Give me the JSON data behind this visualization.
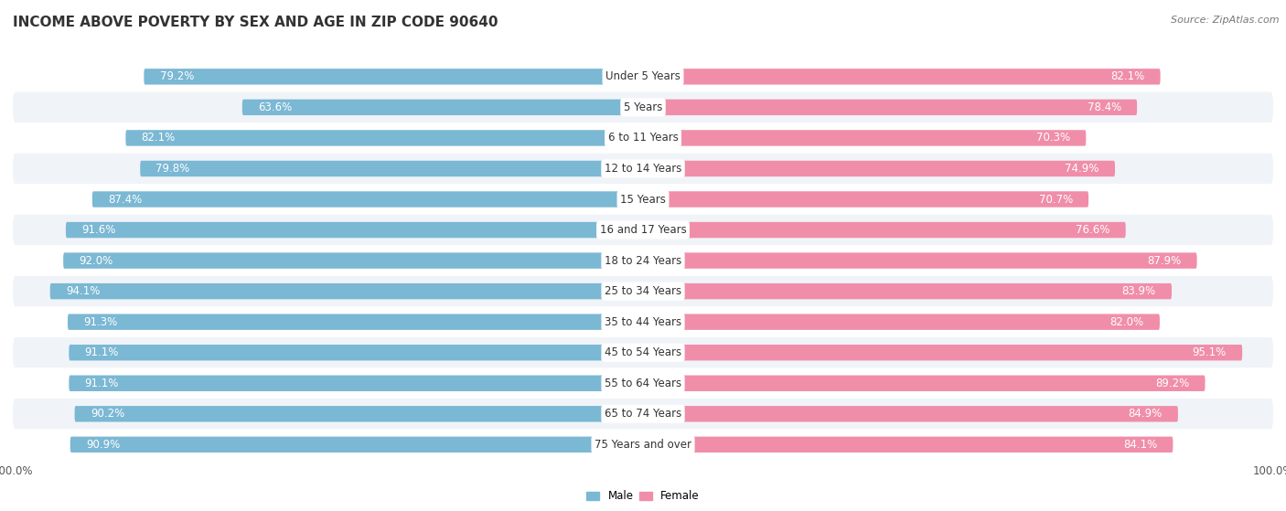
{
  "title": "INCOME ABOVE POVERTY BY SEX AND AGE IN ZIP CODE 90640",
  "source": "Source: ZipAtlas.com",
  "categories": [
    "Under 5 Years",
    "5 Years",
    "6 to 11 Years",
    "12 to 14 Years",
    "15 Years",
    "16 and 17 Years",
    "18 to 24 Years",
    "25 to 34 Years",
    "35 to 44 Years",
    "45 to 54 Years",
    "55 to 64 Years",
    "65 to 74 Years",
    "75 Years and over"
  ],
  "male_values": [
    79.2,
    63.6,
    82.1,
    79.8,
    87.4,
    91.6,
    92.0,
    94.1,
    91.3,
    91.1,
    91.1,
    90.2,
    90.9
  ],
  "female_values": [
    82.1,
    78.4,
    70.3,
    74.9,
    70.7,
    76.6,
    87.9,
    83.9,
    82.0,
    95.1,
    89.2,
    84.9,
    84.1
  ],
  "male_color": "#7bb8d4",
  "female_color": "#f08eaa",
  "male_light_color": "#c8dff0",
  "female_light_color": "#f8d0dc",
  "bar_height": 0.52,
  "row_odd_color": "#f0f4f8",
  "row_even_color": "#ffffff",
  "title_fontsize": 11,
  "label_fontsize": 8.5,
  "tick_fontsize": 8.5,
  "source_fontsize": 8
}
